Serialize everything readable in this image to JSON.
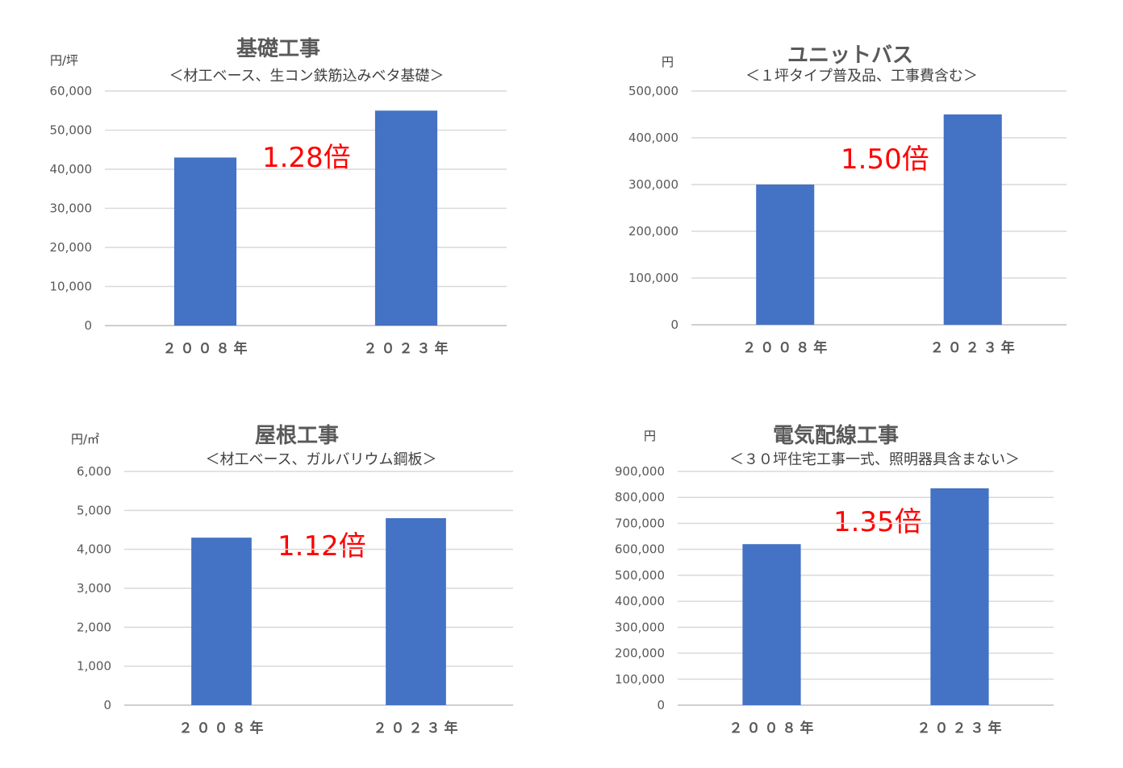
{
  "colors": {
    "bar": "#4472c4",
    "grid": "#d9d9d9",
    "annotation": "#ff0000",
    "text": "#595959"
  },
  "chart_data": [
    {
      "type": "bar",
      "title": "基礎工事",
      "subtitle": "＜材工ベース、生コン鉄筋込みベタ基礎＞",
      "unit": "円/坪",
      "categories": [
        "２００８年",
        "２０２３年"
      ],
      "values": [
        43000,
        55000
      ],
      "ylim": [
        0,
        60000
      ],
      "yticks": [
        "0",
        "10,000",
        "20,000",
        "30,000",
        "40,000",
        "50,000",
        "60,000"
      ],
      "annotation": "1.28倍",
      "grid": true
    },
    {
      "type": "bar",
      "title": "ユニットバス",
      "subtitle": "＜１坪タイプ普及品、工事費含む＞",
      "unit": "円",
      "categories": [
        "２００８年",
        "２０２３年"
      ],
      "values": [
        300000,
        450000
      ],
      "ylim": [
        0,
        500000
      ],
      "yticks": [
        "0",
        "100,000",
        "200,000",
        "300,000",
        "400,000",
        "500,000"
      ],
      "annotation": "1.50倍",
      "grid": true
    },
    {
      "type": "bar",
      "title": "屋根工事",
      "subtitle": "＜材工ベース、ガルバリウム鋼板＞",
      "unit": "円/㎡",
      "categories": [
        "２００８年",
        "２０２３年"
      ],
      "values": [
        4300,
        4800
      ],
      "ylim": [
        0,
        6000
      ],
      "yticks": [
        "0",
        "1,000",
        "2,000",
        "3,000",
        "4,000",
        "5,000",
        "6,000"
      ],
      "annotation": "1.12倍",
      "grid": true
    },
    {
      "type": "bar",
      "title": "電気配線工事",
      "subtitle": "＜３０坪住宅工事一式、照明器具含まない＞",
      "unit": "円",
      "categories": [
        "２００８年",
        "２０２３年"
      ],
      "values": [
        620000,
        835000
      ],
      "ylim": [
        0,
        900000
      ],
      "yticks": [
        "0",
        "100,000",
        "200,000",
        "300,000",
        "400,000",
        "500,000",
        "600,000",
        "700,000",
        "800,000",
        "900,000"
      ],
      "annotation": "1.35倍",
      "grid": true
    }
  ]
}
